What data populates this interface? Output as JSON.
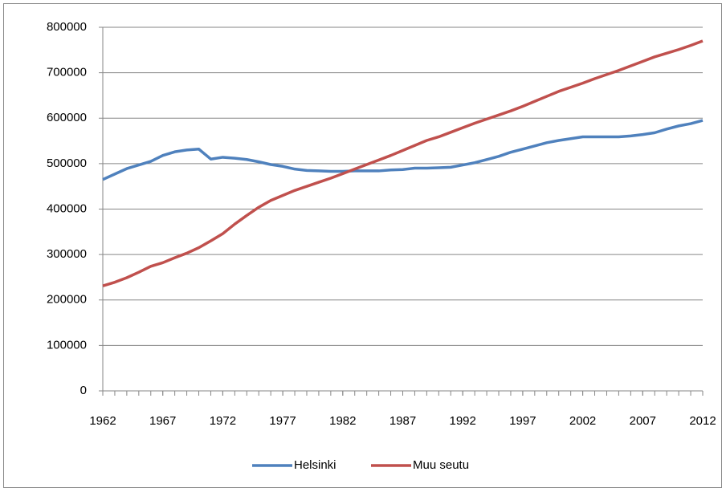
{
  "chart_data": {
    "type": "line",
    "x": [
      1962,
      1963,
      1964,
      1965,
      1966,
      1967,
      1968,
      1969,
      1970,
      1971,
      1972,
      1973,
      1974,
      1975,
      1976,
      1977,
      1978,
      1979,
      1980,
      1981,
      1982,
      1983,
      1984,
      1985,
      1986,
      1987,
      1988,
      1989,
      1990,
      1991,
      1992,
      1993,
      1994,
      1995,
      1996,
      1997,
      1998,
      1999,
      2000,
      2001,
      2002,
      2003,
      2004,
      2005,
      2006,
      2007,
      2008,
      2009,
      2010,
      2011,
      2012
    ],
    "series": [
      {
        "name": "Helsinki",
        "color": "#4f81bd",
        "values": [
          465000,
          477000,
          489000,
          497000,
          505000,
          518000,
          526000,
          530000,
          532000,
          510000,
          514000,
          512000,
          509000,
          504000,
          498000,
          494000,
          488000,
          485000,
          484000,
          483000,
          483000,
          484000,
          484000,
          484000,
          486000,
          487000,
          490000,
          490000,
          491000,
          492000,
          497000,
          502000,
          509000,
          516000,
          525000,
          532000,
          539000,
          546000,
          551000,
          555000,
          559000,
          559000,
          559000,
          559000,
          561000,
          564000,
          568000,
          576000,
          583000,
          588000,
          595000
        ]
      },
      {
        "name": "Muu seutu",
        "color": "#c0504d",
        "values": [
          231000,
          239000,
          249000,
          261000,
          274000,
          282000,
          293000,
          303000,
          315000,
          330000,
          346000,
          367000,
          386000,
          404000,
          419000,
          430000,
          441000,
          450000,
          459000,
          468000,
          478000,
          488000,
          498000,
          508000,
          518000,
          529000,
          540000,
          551000,
          559000,
          569000,
          579000,
          589000,
          598000,
          607000,
          616000,
          626000,
          637000,
          648000,
          659000,
          668000,
          677000,
          687000,
          696000,
          705000,
          715000,
          725000,
          735000,
          743000,
          751000,
          760000,
          770000
        ]
      }
    ],
    "xlim": [
      1962,
      2012
    ],
    "xticks": [
      1962,
      1967,
      1972,
      1977,
      1982,
      1987,
      1992,
      1997,
      2002,
      2007,
      2012
    ],
    "ylim": [
      0,
      800000
    ],
    "yticks": [
      0,
      100000,
      200000,
      300000,
      400000,
      500000,
      600000,
      700000,
      800000
    ],
    "grid": true,
    "legend": "bottom"
  }
}
